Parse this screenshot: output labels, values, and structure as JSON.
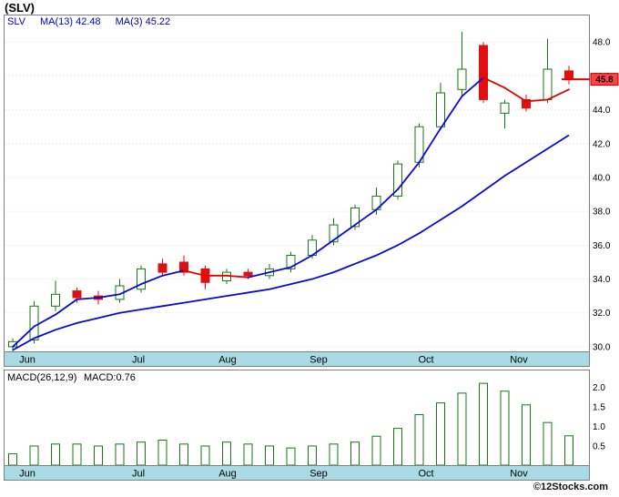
{
  "title": "(SLV)",
  "copyright": "©12Stocks.com",
  "colors": {
    "band": "#a9dbe6",
    "panel_border": "#808080",
    "grid": "#d9d9d9",
    "up": "#157a15",
    "down": "#e01010",
    "ma_blue": "#0a0ad0",
    "ma_red": "#e80000",
    "legend_blue": "#0000dd",
    "legend_navy": "#0000a0",
    "marker_bg": "#ff4242",
    "marker_border": "#b00000"
  },
  "chart_data": [
    {
      "type": "candlestick",
      "symbol": "SLV",
      "title": "(SLV) weekly price with moving averages",
      "legend": {
        "symbol": "SLV",
        "ma13": "MA(13)  42.48",
        "ma3": "MA(3)  45.22"
      },
      "months": [
        "Jun",
        "Jul",
        "Aug",
        "Sep",
        "Oct",
        "Nov"
      ],
      "y_ticks": [
        48,
        46,
        44,
        42,
        40,
        38,
        36,
        34,
        32,
        30
      ],
      "ylim": [
        29.7,
        49.6
      ],
      "last_price": 45.8,
      "last_price_label": "45.8",
      "candles_ohlc": [
        [
          30.0,
          30.5,
          29.7,
          30.3
        ],
        [
          30.4,
          32.7,
          30.2,
          32.4
        ],
        [
          32.4,
          33.9,
          32.1,
          33.1
        ],
        [
          33.3,
          33.5,
          32.6,
          32.9
        ],
        [
          33.0,
          33.3,
          32.5,
          32.8
        ],
        [
          32.8,
          34.0,
          32.6,
          33.6
        ],
        [
          33.4,
          34.8,
          33.2,
          34.6
        ],
        [
          34.9,
          35.2,
          34.2,
          34.4
        ],
        [
          35.0,
          35.4,
          34.2,
          34.4
        ],
        [
          34.6,
          34.8,
          33.4,
          33.8
        ],
        [
          33.9,
          34.6,
          33.7,
          34.4
        ],
        [
          34.4,
          34.6,
          34.0,
          34.2
        ],
        [
          34.2,
          34.9,
          34.0,
          34.6
        ],
        [
          34.6,
          35.6,
          34.4,
          35.4
        ],
        [
          35.4,
          36.6,
          35.2,
          36.3
        ],
        [
          36.2,
          37.6,
          36.0,
          37.2
        ],
        [
          37.1,
          38.4,
          36.9,
          38.2
        ],
        [
          38.1,
          39.4,
          37.8,
          38.9
        ],
        [
          38.9,
          41.0,
          38.7,
          40.8
        ],
        [
          40.9,
          43.2,
          40.6,
          43.0
        ],
        [
          43.0,
          45.6,
          42.8,
          45.0
        ],
        [
          45.2,
          48.6,
          44.8,
          46.4
        ],
        [
          47.8,
          48.0,
          44.4,
          44.6
        ],
        [
          43.8,
          44.6,
          42.9,
          44.4
        ],
        [
          44.6,
          44.9,
          43.9,
          44.1
        ],
        [
          44.6,
          48.2,
          44.4,
          46.4
        ],
        [
          46.3,
          46.6,
          45.5,
          45.8
        ]
      ],
      "ma3": [
        30.0,
        31.2,
        31.9,
        32.8,
        32.9,
        33.1,
        33.7,
        34.2,
        34.5,
        34.2,
        34.2,
        34.1,
        34.4,
        34.7,
        35.4,
        36.3,
        37.2,
        38.1,
        39.3,
        40.9,
        42.9,
        44.8,
        45.9,
        45.3,
        44.5,
        44.6,
        45.2
      ],
      "ma13": [
        29.8,
        30.5,
        31.0,
        31.4,
        31.7,
        32.0,
        32.2,
        32.4,
        32.6,
        32.8,
        33.0,
        33.2,
        33.4,
        33.7,
        34.0,
        34.4,
        34.9,
        35.4,
        36.0,
        36.7,
        37.5,
        38.3,
        39.2,
        40.1,
        40.9,
        41.7,
        42.5
      ],
      "ma3_red_segments": [
        [
          8,
          11
        ],
        [
          22,
          26
        ]
      ]
    },
    {
      "type": "bar",
      "label": "MACD(26,12,9)",
      "value_label": "MACD:0.76",
      "months": [
        "Jun",
        "Jul",
        "Aug",
        "Sep",
        "Oct",
        "Nov"
      ],
      "y_ticks": [
        2.0,
        1.5,
        1.0,
        0.5
      ],
      "ylim": [
        0,
        2.44
      ],
      "values": [
        0.3,
        0.5,
        0.55,
        0.55,
        0.5,
        0.55,
        0.6,
        0.65,
        0.55,
        0.5,
        0.6,
        0.55,
        0.5,
        0.45,
        0.5,
        0.55,
        0.6,
        0.75,
        0.95,
        1.3,
        1.6,
        1.85,
        2.1,
        1.9,
        1.55,
        1.1,
        0.76
      ]
    }
  ]
}
